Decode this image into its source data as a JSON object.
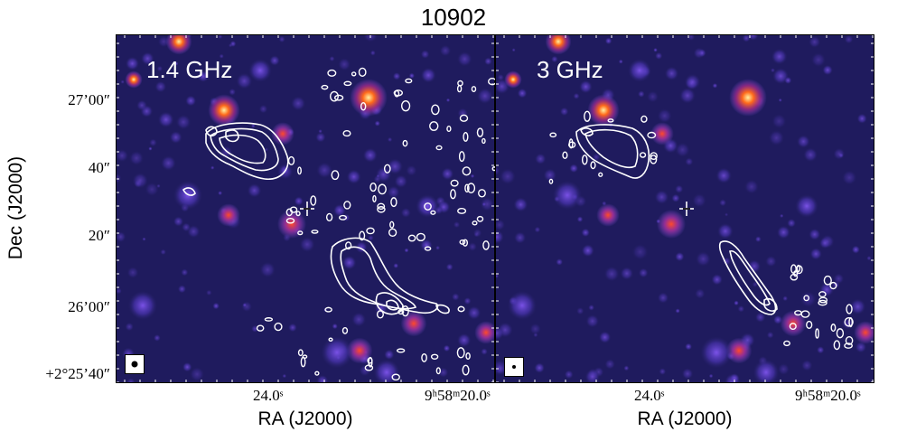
{
  "figure": {
    "title": "10902",
    "y_axis_label": "Dec (J2000)",
    "x_axis_label": "RA (J2000)",
    "dec_ticks": [
      "27’00″",
      "40″",
      "20″",
      "26’00″",
      "+2°25’40″"
    ],
    "ra_ticks": [
      "24.0ˢ",
      "9ʰ58ᵐ20.0ˢ"
    ]
  },
  "panels": [
    {
      "label": "1.4 GHz",
      "contour_color": "#ffffff"
    },
    {
      "label": "3 GHz",
      "contour_color": "#ffffff"
    }
  ],
  "colors": {
    "background": "#1f1b5e",
    "source_core": "#fff0a0",
    "source_hot": "#ff6a1a",
    "source_glow": "#7a4dd8"
  }
}
